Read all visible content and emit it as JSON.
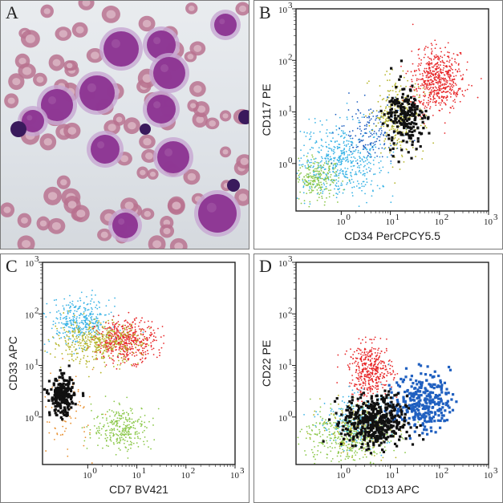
{
  "panels": {
    "a": {
      "letter": "A",
      "kind": "blood-smear-micrograph",
      "stain_color": "#8a2f8f"
    },
    "b": {
      "letter": "B",
      "x_label": "CD34 PerCPCY5.5",
      "y_label": "CD117 PE",
      "x_ticks": [
        "10",
        "10",
        "10",
        "10"
      ],
      "x_exp": [
        "0",
        "1",
        "2",
        "3"
      ],
      "y_ticks": [
        "10",
        "10",
        "10",
        "10"
      ],
      "y_exp": [
        "0",
        "1",
        "2",
        "3"
      ]
    },
    "c": {
      "letter": "C",
      "x_label": "CD7 BV421",
      "y_label": "CD33 APC",
      "x_ticks": [
        "10",
        "10",
        "10",
        "10"
      ],
      "x_exp": [
        "0",
        "1",
        "2",
        "3"
      ],
      "y_ticks": [
        "10",
        "10",
        "10",
        "10"
      ],
      "y_exp": [
        "0",
        "1",
        "2",
        "3"
      ]
    },
    "d": {
      "letter": "D",
      "x_label": "CD13 APC",
      "y_label": "CD22 PE",
      "x_ticks": [
        "10",
        "10",
        "10",
        "10"
      ],
      "x_exp": [
        "0",
        "1",
        "2",
        "3"
      ],
      "y_ticks": [
        "10",
        "10",
        "10",
        "10"
      ],
      "y_exp": [
        "0",
        "1",
        "2",
        "3"
      ]
    }
  },
  "chart_data": [
    {
      "type": "scatter",
      "panel": "B",
      "xlabel": "CD34 PerCPCY5.5",
      "ylabel": "CD117 PE",
      "x_scale": "log10",
      "y_scale": "log10",
      "xlim": [
        0.12,
        1000
      ],
      "ylim": [
        0.12,
        1000
      ],
      "clusters": [
        {
          "name": "light-blue",
          "color": "#3cb4e6",
          "center": [
            1,
            1
          ],
          "spread": [
            0.45,
            0.35
          ],
          "n": 520,
          "marker": "dot"
        },
        {
          "name": "green",
          "color": "#8cc84b",
          "center": [
            0.3,
            0.5
          ],
          "spread": [
            0.25,
            0.18
          ],
          "n": 220,
          "marker": "dot"
        },
        {
          "name": "dark-blue",
          "color": "#2060c0",
          "center": [
            4,
            4
          ],
          "spread": [
            0.3,
            0.3
          ],
          "n": 160,
          "marker": "dot"
        },
        {
          "name": "olive",
          "color": "#b4b428",
          "center": [
            15,
            8
          ],
          "spread": [
            0.25,
            0.35
          ],
          "n": 300,
          "marker": "dot"
        },
        {
          "name": "red",
          "color": "#e8282a",
          "center": [
            90,
            40
          ],
          "spread": [
            0.25,
            0.3
          ],
          "n": 560,
          "marker": "dot"
        },
        {
          "name": "black",
          "color": "#111111",
          "center": [
            20,
            8
          ],
          "spread": [
            0.18,
            0.3
          ],
          "n": 210,
          "marker": "square"
        }
      ]
    },
    {
      "type": "scatter",
      "panel": "C",
      "xlabel": "CD7 BV421",
      "ylabel": "CD33 APC",
      "x_scale": "log10",
      "y_scale": "log10",
      "xlim": [
        0.12,
        1000
      ],
      "ylim": [
        0.12,
        1000
      ],
      "clusters": [
        {
          "name": "light-blue",
          "color": "#3cb4e6",
          "center": [
            0.7,
            70
          ],
          "spread": [
            0.3,
            0.22
          ],
          "n": 340,
          "marker": "dot"
        },
        {
          "name": "red",
          "color": "#e8282a",
          "center": [
            6,
            30
          ],
          "spread": [
            0.3,
            0.2
          ],
          "n": 480,
          "marker": "dot"
        },
        {
          "name": "olive",
          "color": "#b4b428",
          "center": [
            1.5,
            28
          ],
          "spread": [
            0.45,
            0.2
          ],
          "n": 420,
          "marker": "dot"
        },
        {
          "name": "green",
          "color": "#8cc84b",
          "center": [
            5,
            0.6
          ],
          "spread": [
            0.3,
            0.22
          ],
          "n": 280,
          "marker": "dot"
        },
        {
          "name": "orange",
          "color": "#e89030",
          "center": [
            0.35,
            1.2
          ],
          "spread": [
            0.3,
            0.4
          ],
          "n": 70,
          "marker": "dot"
        },
        {
          "name": "black",
          "color": "#111111",
          "center": [
            0.3,
            2.5
          ],
          "spread": [
            0.12,
            0.18
          ],
          "n": 260,
          "marker": "square"
        }
      ]
    },
    {
      "type": "scatter",
      "panel": "D",
      "xlabel": "CD13 APC",
      "ylabel": "CD22 PE",
      "x_scale": "log10",
      "y_scale": "log10",
      "xlim": [
        0.12,
        1000
      ],
      "ylim": [
        0.12,
        1000
      ],
      "clusters": [
        {
          "name": "red",
          "color": "#e8282a",
          "center": [
            4,
            8
          ],
          "spread": [
            0.22,
            0.25
          ],
          "n": 420,
          "marker": "dot"
        },
        {
          "name": "green",
          "color": "#8cc84b",
          "center": [
            1.2,
            0.4
          ],
          "spread": [
            0.45,
            0.25
          ],
          "n": 360,
          "marker": "dot"
        },
        {
          "name": "light-blue",
          "color": "#3cb4e6",
          "center": [
            2,
            0.9
          ],
          "spread": [
            0.35,
            0.25
          ],
          "n": 240,
          "marker": "dot"
        },
        {
          "name": "olive",
          "color": "#b4b428",
          "center": [
            2,
            0.6
          ],
          "spread": [
            0.35,
            0.25
          ],
          "n": 180,
          "marker": "dot"
        },
        {
          "name": "dark-blue",
          "color": "#2060c0",
          "center": [
            45,
            2
          ],
          "spread": [
            0.28,
            0.28
          ],
          "n": 300,
          "marker": "square"
        },
        {
          "name": "black",
          "color": "#111111",
          "center": [
            5,
            0.8
          ],
          "spread": [
            0.32,
            0.25
          ],
          "n": 480,
          "marker": "square"
        }
      ]
    }
  ]
}
